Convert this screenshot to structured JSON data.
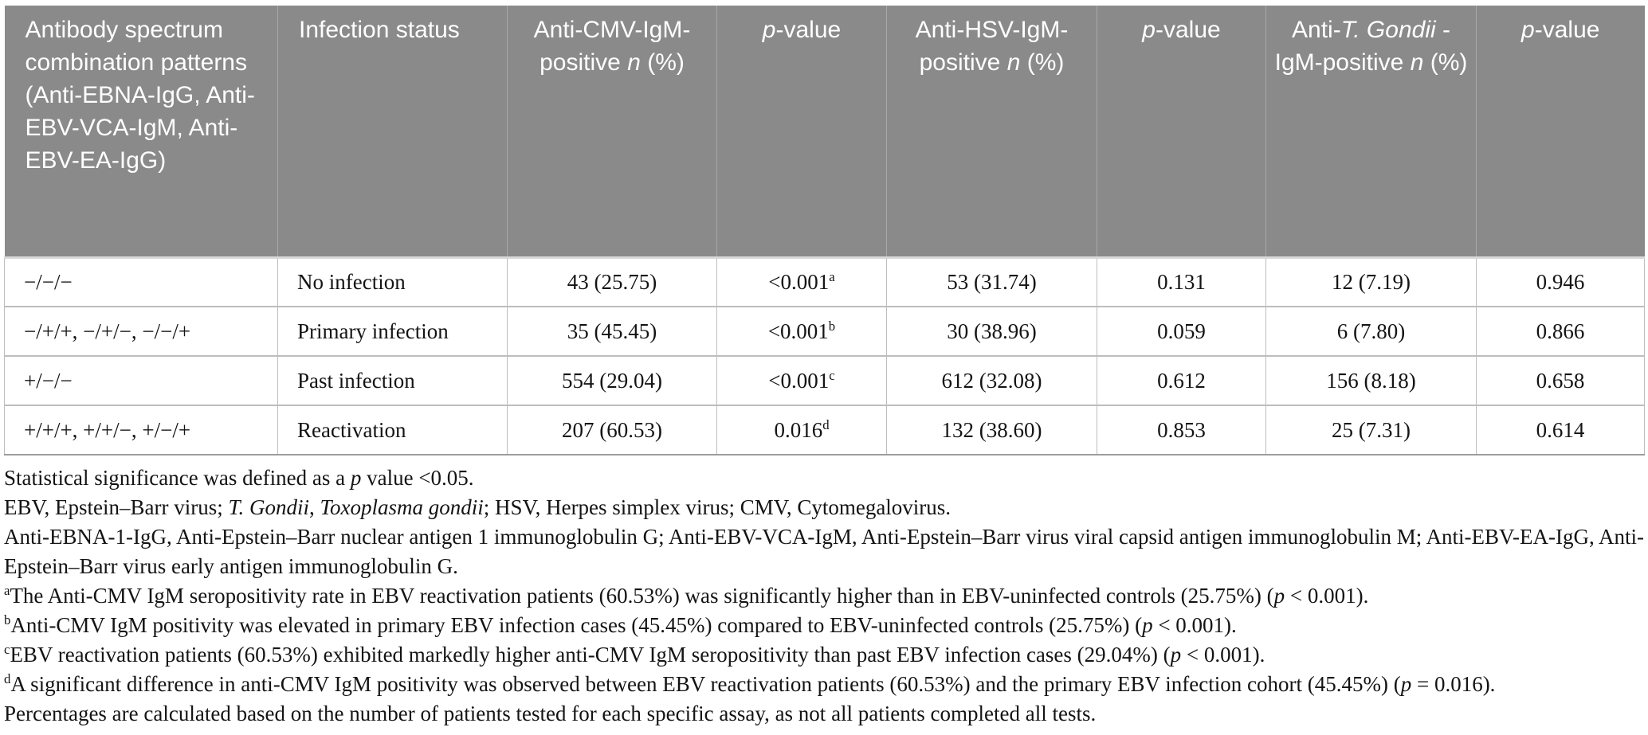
{
  "colors": {
    "header_bg": "#8a8a8a",
    "header_text": "#ffffff",
    "header_divider": "#a8a8a8",
    "body_border": "#bdbdbd",
    "table_bottom_border": "#9c9c9c",
    "text": "#141414"
  },
  "table": {
    "columns": [
      {
        "label": "Antibody spectrum combination patterns (Anti-EBNA-IgG, Anti-EBV-VCA-IgM, Anti-EBV-EA-IgG)"
      },
      {
        "label": "Infection status"
      },
      {
        "label": "Anti-CMV-IgM-positive *n* (%)"
      },
      {
        "label": "*p*-value"
      },
      {
        "label": "Anti-HSV-IgM-positive *n* (%)"
      },
      {
        "label": "*p*-value"
      },
      {
        "label": "Anti-*T. Gondii* -IgM-positive *n* (%)"
      },
      {
        "label": "*p*-value"
      }
    ],
    "rows": [
      {
        "cells": [
          "−/−/−",
          "No infection",
          "43 (25.75)",
          "<0.001^a^",
          "53 (31.74)",
          "0.131",
          "12 (7.19)",
          "0.946"
        ]
      },
      {
        "cells": [
          "−/+/+, −/+/−, −/−/+",
          "Primary infection",
          "35 (45.45)",
          "<0.001^b^",
          "30 (38.96)",
          "0.059",
          "6 (7.80)",
          "0.866"
        ]
      },
      {
        "cells": [
          "+/−/−",
          "Past infection",
          "554 (29.04)",
          "<0.001^c^",
          "612 (32.08)",
          "0.612",
          "156 (8.18)",
          "0.658"
        ]
      },
      {
        "cells": [
          "+/+/+, +/+/−, +/−/+",
          "Reactivation",
          "207 (60.53)",
          "0.016^d^",
          "132 (38.60)",
          "0.853",
          "25 (7.31)",
          "0.614"
        ]
      }
    ]
  },
  "footnotes": [
    "Statistical significance was defined as a *p* value <0.05.",
    "EBV, Epstein–Barr virus; *T. Gondii*, *Toxoplasma gondii*; HSV, Herpes simplex virus; CMV, Cytomegalovirus.",
    "Anti-EBNA-1-IgG, Anti-Epstein–Barr nuclear antigen 1 immunoglobulin G; Anti-EBV-VCA-IgM, Anti-Epstein–Barr virus viral capsid antigen immunoglobulin M; Anti-EBV-EA-IgG, Anti-Epstein–Barr virus early antigen immunoglobulin G.",
    "^a^The Anti-CMV IgM seropositivity rate in EBV reactivation patients (60.53%) was significantly higher than in EBV-uninfected controls (25.75%) (*p* < 0.001).",
    "^b^Anti-CMV IgM positivity was elevated in primary EBV infection cases (45.45%) compared to EBV-uninfected controls (25.75%) (*p* < 0.001).",
    "^c^EBV reactivation patients (60.53%) exhibited markedly higher anti-CMV IgM seropositivity than past EBV infection cases (29.04%) (*p* < 0.001).",
    "^d^A significant difference in anti-CMV IgM positivity was observed between EBV reactivation patients (60.53%) and the primary EBV infection cohort (45.45%) (*p* = 0.016).",
    "Percentages are calculated based on the number of patients tested for each specific assay, as not all patients completed all tests."
  ]
}
